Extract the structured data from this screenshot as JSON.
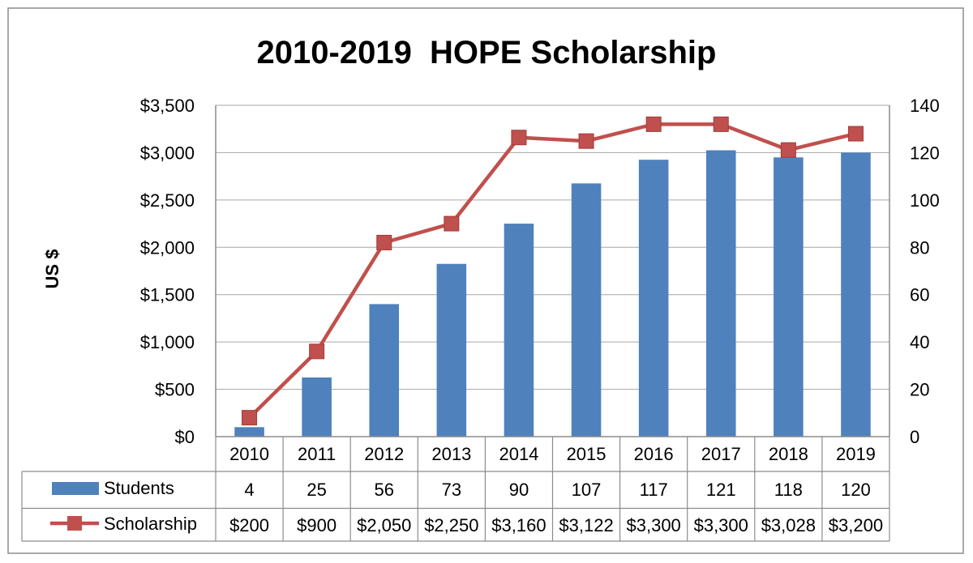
{
  "chart_data": {
    "type": "bar",
    "title": "2010-2019  HOPE Scholarship",
    "ylabel": "US $",
    "categories": [
      "2010",
      "2011",
      "2012",
      "2013",
      "2014",
      "2015",
      "2016",
      "2017",
      "2018",
      "2019"
    ],
    "y_left": {
      "ticks": [
        "$0",
        "$500",
        "$1,000",
        "$1,500",
        "$2,000",
        "$2,500",
        "$3,000",
        "$3,500"
      ],
      "range": [
        0,
        3500
      ]
    },
    "y_right": {
      "ticks": [
        "0",
        "20",
        "40",
        "60",
        "80",
        "100",
        "120",
        "140"
      ],
      "range": [
        0,
        140
      ]
    },
    "grid": "horizontal",
    "legend": "data-table-below",
    "series": [
      {
        "name": "Students",
        "type": "bar",
        "axis": "right",
        "color": "#4F81BD",
        "values": [
          4,
          25,
          56,
          73,
          90,
          107,
          117,
          121,
          118,
          120
        ],
        "table_labels": [
          "4",
          "25",
          "56",
          "73",
          "90",
          "107",
          "117",
          "121",
          "118",
          "120"
        ]
      },
      {
        "name": "Scholarship",
        "type": "line",
        "axis": "left",
        "color": "#C0504D",
        "marker": "square",
        "values": [
          200,
          900,
          2050,
          2250,
          3160,
          3122,
          3300,
          3300,
          3028,
          3200
        ],
        "table_labels": [
          "$200",
          "$900",
          "$2,050",
          "$2,250",
          "$3,160",
          "$3,122",
          "$3,300",
          "$3,300",
          "$3,028",
          "$3,200"
        ]
      }
    ]
  }
}
